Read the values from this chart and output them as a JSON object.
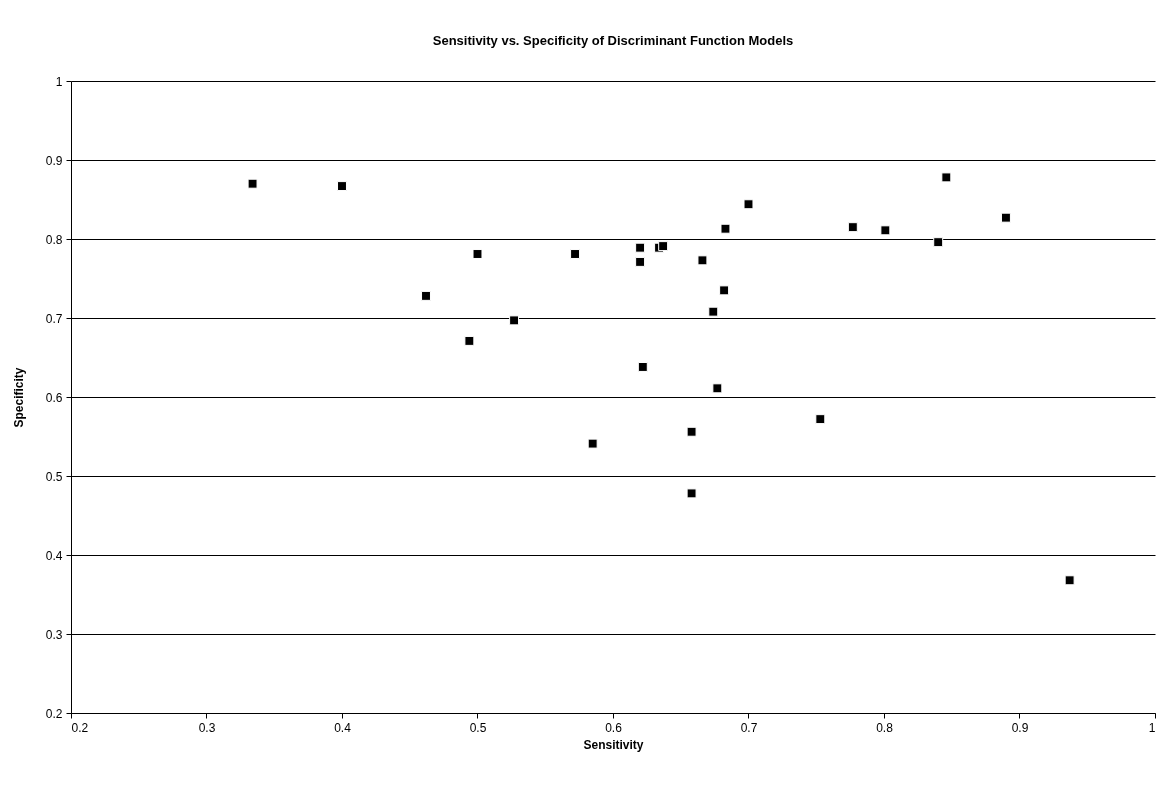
{
  "chart_data": {
    "type": "scatter",
    "title": "Sensitivity vs. Specificity of Discriminant Function Models",
    "xlabel": "Sensitivity",
    "ylabel": "Specificity",
    "x": [
      0.334,
      0.4,
      0.462,
      0.494,
      0.5,
      0.527,
      0.7,
      0.683,
      0.572,
      0.62,
      0.634,
      0.637,
      0.62,
      0.666,
      0.682,
      0.674,
      0.622,
      0.677,
      0.585,
      0.658,
      0.658,
      0.753,
      0.846,
      0.777,
      0.801,
      0.89,
      0.84,
      0.937
    ],
    "values": [
      0.87,
      0.867,
      0.728,
      0.671,
      0.781,
      0.697,
      0.844,
      0.813,
      0.781,
      0.789,
      0.789,
      0.791,
      0.771,
      0.773,
      0.735,
      0.708,
      0.638,
      0.611,
      0.541,
      0.556,
      0.478,
      0.572,
      0.878,
      0.815,
      0.811,
      0.827,
      0.796,
      0.368
    ],
    "color": "#000000",
    "marker": "square",
    "xlim": [
      0.2,
      1
    ],
    "xticks": [
      0.2,
      0.3,
      0.4,
      0.5,
      0.6,
      0.7,
      0.8,
      0.9,
      1
    ],
    "ylim": [
      0.2,
      1
    ],
    "yticks": [
      0.2,
      0.3,
      0.4,
      0.5,
      0.6,
      0.7,
      0.8,
      0.9,
      1
    ],
    "grid": "y"
  }
}
